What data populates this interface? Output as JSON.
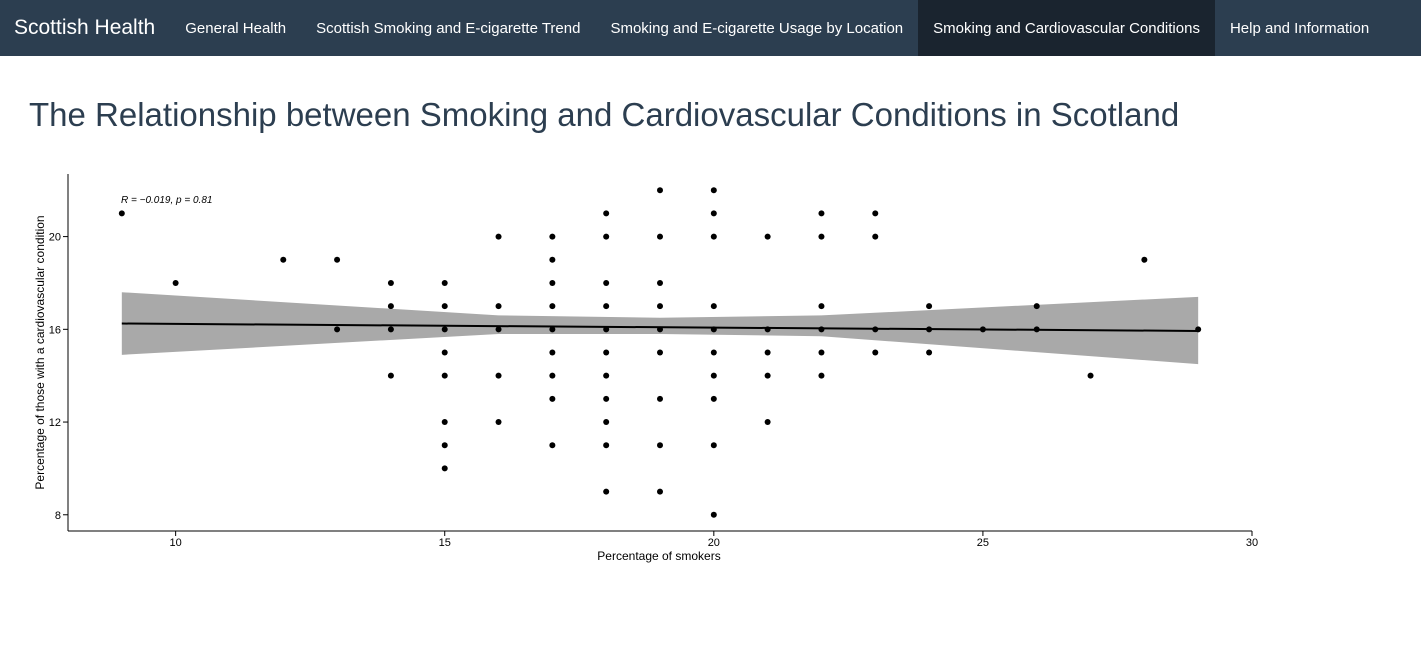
{
  "nav": {
    "brand": "Scottish Health",
    "tabs": [
      {
        "label": "General Health",
        "active": false
      },
      {
        "label": "Scottish Smoking and E-cigarette Trend",
        "active": false
      },
      {
        "label": "Smoking and E-cigarette Usage by Location",
        "active": false
      },
      {
        "label": "Smoking and Cardiovascular Conditions",
        "active": true
      },
      {
        "label": "Help and Information",
        "active": false
      }
    ]
  },
  "page": {
    "title": "The Relationship between Smoking and Cardiovascular Conditions in Scotland"
  },
  "colors": {
    "navbar": "#2c3e50",
    "nav_active": "#1a242f",
    "confidence_band": "#a9a9a9",
    "points": "#000000"
  },
  "chart_data": {
    "type": "scatter",
    "xlabel": "Percentage of smokers",
    "ylabel": "Percentage of those with a cardiovascular condition",
    "xlim": [
      8,
      30
    ],
    "ylim": [
      7.3,
      22.7
    ],
    "xticks": [
      10,
      15,
      20,
      25,
      30
    ],
    "yticks": [
      8,
      12,
      16,
      20
    ],
    "grid": false,
    "annotation": "R = −0.019, p = 0.81",
    "regression": {
      "x": [
        9,
        29
      ],
      "y": [
        16.25,
        15.93
      ],
      "band": {
        "x": [
          9,
          16,
          19,
          22,
          29
        ],
        "upper": [
          17.6,
          16.6,
          16.5,
          16.6,
          17.4
        ],
        "lower": [
          14.9,
          15.8,
          15.8,
          15.7,
          14.5
        ]
      }
    },
    "points": [
      [
        9,
        21
      ],
      [
        10,
        18
      ],
      [
        12,
        19
      ],
      [
        13,
        19
      ],
      [
        13,
        16
      ],
      [
        14,
        18
      ],
      [
        14,
        17
      ],
      [
        14,
        16
      ],
      [
        14,
        14
      ],
      [
        15,
        18
      ],
      [
        15,
        17
      ],
      [
        15,
        16
      ],
      [
        15,
        15
      ],
      [
        15,
        14
      ],
      [
        15,
        12
      ],
      [
        15,
        11
      ],
      [
        15,
        10
      ],
      [
        16,
        20
      ],
      [
        16,
        17
      ],
      [
        16,
        16
      ],
      [
        16,
        14
      ],
      [
        16,
        12
      ],
      [
        17,
        20
      ],
      [
        17,
        19
      ],
      [
        17,
        18
      ],
      [
        17,
        17
      ],
      [
        17,
        16
      ],
      [
        17,
        15
      ],
      [
        17,
        14
      ],
      [
        17,
        13
      ],
      [
        17,
        11
      ],
      [
        18,
        21
      ],
      [
        18,
        20
      ],
      [
        18,
        18
      ],
      [
        18,
        17
      ],
      [
        18,
        16
      ],
      [
        18,
        15
      ],
      [
        18,
        14
      ],
      [
        18,
        13
      ],
      [
        18,
        12
      ],
      [
        18,
        11
      ],
      [
        18,
        9
      ],
      [
        19,
        22
      ],
      [
        19,
        20
      ],
      [
        19,
        18
      ],
      [
        19,
        17
      ],
      [
        19,
        16
      ],
      [
        19,
        15
      ],
      [
        19,
        13
      ],
      [
        19,
        11
      ],
      [
        19,
        9
      ],
      [
        20,
        22
      ],
      [
        20,
        21
      ],
      [
        20,
        20
      ],
      [
        20,
        17
      ],
      [
        20,
        16
      ],
      [
        20,
        15
      ],
      [
        20,
        14
      ],
      [
        20,
        13
      ],
      [
        20,
        11
      ],
      [
        20,
        8
      ],
      [
        21,
        20
      ],
      [
        21,
        16
      ],
      [
        21,
        15
      ],
      [
        21,
        14
      ],
      [
        21,
        12
      ],
      [
        22,
        21
      ],
      [
        22,
        20
      ],
      [
        22,
        17
      ],
      [
        22,
        16
      ],
      [
        22,
        15
      ],
      [
        22,
        14
      ],
      [
        23,
        21
      ],
      [
        23,
        20
      ],
      [
        23,
        16
      ],
      [
        23,
        15
      ],
      [
        24,
        17
      ],
      [
        24,
        16
      ],
      [
        24,
        15
      ],
      [
        25,
        16
      ],
      [
        26,
        17
      ],
      [
        26,
        16
      ],
      [
        27,
        14
      ],
      [
        28,
        19
      ],
      [
        29,
        16
      ]
    ]
  }
}
